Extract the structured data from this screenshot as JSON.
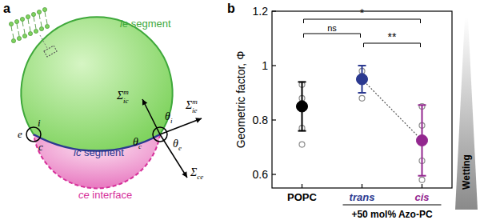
{
  "chart_data": {
    "type": "dot",
    "panel_label": "b",
    "categories": [
      "POPC",
      "trans",
      "cis"
    ],
    "values": [
      0.85,
      0.95,
      0.725
    ],
    "errors": [
      0.09,
      0.05,
      0.13
    ],
    "points": [
      [
        0.93,
        0.88,
        0.86,
        0.77,
        0.71
      ],
      [
        0.98,
        0.96,
        0.88
      ],
      [
        0.85,
        0.78,
        0.73,
        0.65,
        0.58
      ]
    ],
    "colors": [
      "#000000",
      "#2b3990",
      "#93278f"
    ],
    "ylabel": "Geometric factor, Φ",
    "ylim": [
      0.55,
      1.2
    ],
    "yticks": [
      0.6,
      0.8,
      1,
      1.2
    ],
    "group_label": "+50 mol% Azo-PC",
    "brackets": [
      {
        "from": 0,
        "to": 1,
        "label": "ns"
      },
      {
        "from": 0,
        "to": 2,
        "label": "*"
      },
      {
        "from": 1,
        "to": 2,
        "label": "**"
      }
    ],
    "side_label": "Wetting"
  },
  "diagram": {
    "panel_label": "a",
    "segments": [
      "ie segment",
      "ic segment",
      "ce interface"
    ],
    "points": [
      "i",
      "e",
      "c"
    ],
    "angles": [
      {
        "base": "θ",
        "sub": "i"
      },
      {
        "base": "θ",
        "sub": "c"
      },
      {
        "base": "θ",
        "sub": "e"
      }
    ],
    "tensions": [
      {
        "base": "Σ",
        "sup": "m",
        "sub": "ic"
      },
      {
        "base": "Σ",
        "sup": "m",
        "sub": "ie"
      },
      {
        "base": "Σ",
        "sub": "ce"
      }
    ]
  }
}
